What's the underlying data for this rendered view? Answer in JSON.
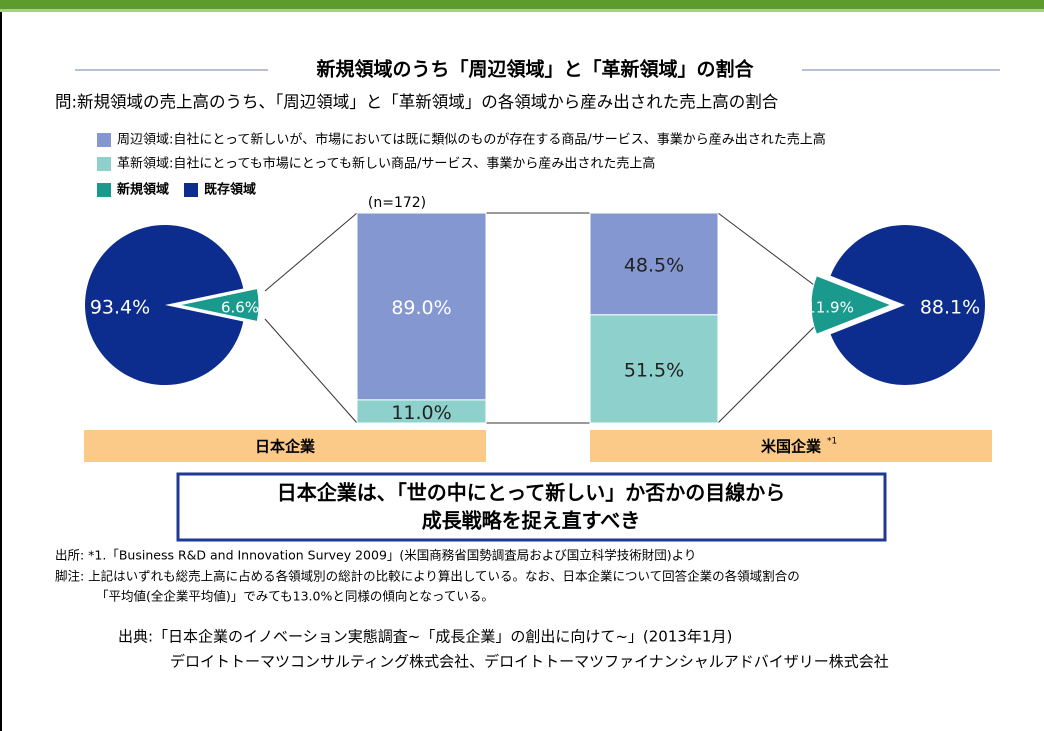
{
  "title": "新規領域のうち「周辺領域」と「革新領域」の割合",
  "question": "問:新規領域の売上高のうち、「周辺領域」と「革新領域」の各領域から産み出された売上高の割合",
  "chart_data": [
    {
      "type": "pie",
      "categories": [
        "新規領域",
        "既存領域"
      ],
      "values": [
        6.6,
        93.4
      ],
      "value_labels": [
        "6.6%",
        "93.4%"
      ],
      "colors": [
        "#1a9a8c",
        "#0c2d8e"
      ]
    },
    {
      "type": "bar",
      "categories": [
        "日本企業"
      ],
      "note": "(n=172)",
      "series": [
        {
          "name": "周辺領域:自社にとって新しいが、市場においては既に類似のものが存在する商品/サービス、事業から産み出された売上高",
          "color": "#8497d0",
          "values": [
            89.0
          ],
          "value_labels": [
            "89.0%"
          ]
        },
        {
          "name": "革新領域:自社にとっても市場にとっても新しい商品/サービス、事業から産み出された売上高",
          "color": "#8ed1cc",
          "values": [
            11.0
          ],
          "value_labels": [
            "11.0%"
          ]
        }
      ]
    },
    {
      "type": "bar",
      "categories": [
        "米国企業"
      ],
      "category_note": "*1",
      "series": [
        {
          "name": "周辺領域",
          "color": "#8497d0",
          "values": [
            48.5
          ],
          "value_labels": [
            "48.5%"
          ]
        },
        {
          "name": "革新領域",
          "color": "#8ed1cc",
          "values": [
            51.5
          ],
          "value_labels": [
            "51.5%"
          ]
        }
      ]
    },
    {
      "type": "pie",
      "categories": [
        "新規領域",
        "既存領域"
      ],
      "values": [
        11.9,
        88.1
      ],
      "value_labels": [
        "11.9%",
        "88.1%"
      ],
      "colors": [
        "#1a9a8c",
        "#0c2d8e"
      ]
    }
  ],
  "conclusion": [
    "日本企業は、「世の中にとって新しい」か否かの目線から",
    "成長戦略を捉え直すべき"
  ],
  "footnotes": [
    "出所: *1.「Business R&D and Innovation Survey 2009」(米国商務省国勢調査局および国立科学技術財団)より",
    "脚注: 上記はいずれも総売上高に占める各領域別の総計の比較により算出している。なお、日本企業について回答企業の各領域割合の",
    "「平均値(全企業平均値)」でみても13.0%と同様の傾向となっている。"
  ],
  "source": [
    "出典:「日本企業のイノベーション実態調査~「成長企業」の創出に向けて~」(2013年1月)",
    "デロイトトーマツコンサルティング株式会社、デロイトトーマツファイナンシャルアドバイザリー株式会社"
  ]
}
